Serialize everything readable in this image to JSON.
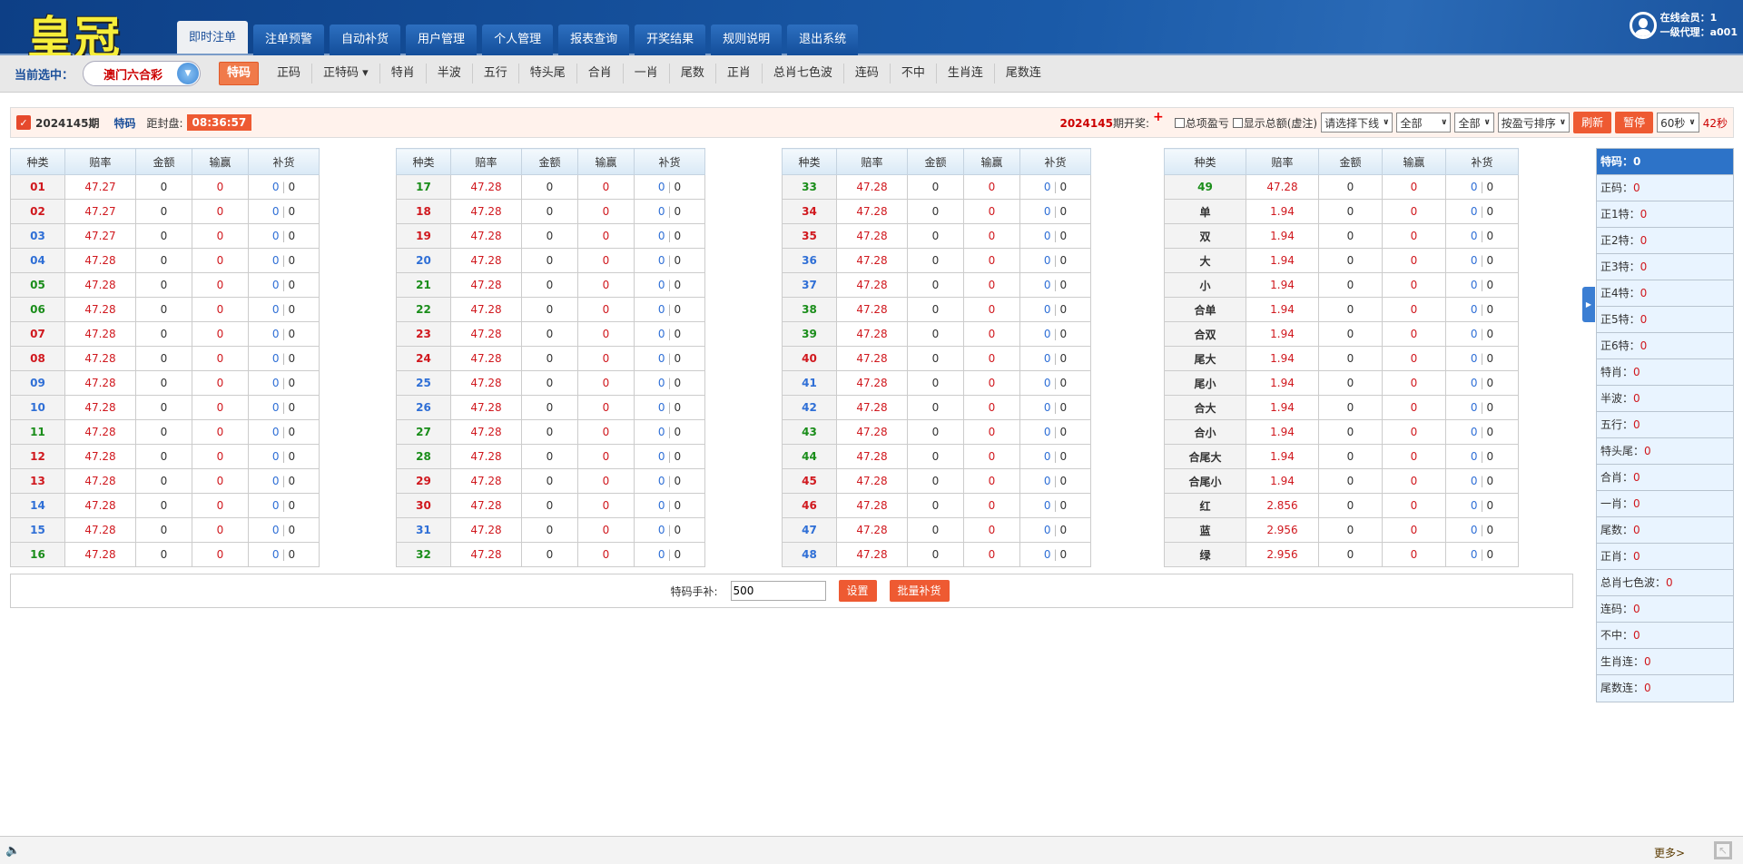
{
  "header": {
    "logo": "皇冠",
    "tabs": [
      "即时注单",
      "注单预警",
      "自动补货",
      "用户管理",
      "个人管理",
      "报表查询",
      "开奖结果",
      "规则说明",
      "退出系统"
    ],
    "online_label": "在线会员：",
    "online_count": "1",
    "agent_label": "一级代理：",
    "agent": "a001"
  },
  "subnav": {
    "current_label": "当前选中：",
    "game": "澳门六合彩",
    "tabs": [
      "特码",
      "正码",
      "正特码 ▾",
      "特肖",
      "半波",
      "五行",
      "特头尾",
      "合肖",
      "一肖",
      "尾数",
      "正肖",
      "总肖七色波",
      "连码",
      "不中",
      "生肖连",
      "尾数连"
    ]
  },
  "infobar": {
    "period": "2024145期",
    "type": "特码",
    "close_label": "距封盘:",
    "countdown": "08:36:57",
    "draw_period": "2024145",
    "draw_label": "期开奖:",
    "chk_total": "总项盈亏",
    "chk_show": "显示总额(虚注)",
    "sel_line": "请选择下线",
    "sel_all1": "全部",
    "sel_all2": "全部",
    "sel_sort": "按盈亏排序",
    "refresh": "刷新",
    "pause": "暂停",
    "sel_interval": "60秒",
    "seconds": "42秒"
  },
  "table": {
    "headers": [
      "种类",
      "赔率",
      "金额",
      "输赢",
      "补货"
    ],
    "columns": [
      [
        [
          "01",
          "47.27",
          "red"
        ],
        [
          "02",
          "47.27",
          "red"
        ],
        [
          "03",
          "47.27",
          "blue"
        ],
        [
          "04",
          "47.28",
          "blue"
        ],
        [
          "05",
          "47.28",
          "green"
        ],
        [
          "06",
          "47.28",
          "green"
        ],
        [
          "07",
          "47.28",
          "red"
        ],
        [
          "08",
          "47.28",
          "red"
        ],
        [
          "09",
          "47.28",
          "blue"
        ],
        [
          "10",
          "47.28",
          "blue"
        ],
        [
          "11",
          "47.28",
          "green"
        ],
        [
          "12",
          "47.28",
          "red"
        ],
        [
          "13",
          "47.28",
          "red"
        ],
        [
          "14",
          "47.28",
          "blue"
        ],
        [
          "15",
          "47.28",
          "blue"
        ],
        [
          "16",
          "47.28",
          "green"
        ]
      ],
      [
        [
          "17",
          "47.28",
          "green"
        ],
        [
          "18",
          "47.28",
          "red"
        ],
        [
          "19",
          "47.28",
          "red"
        ],
        [
          "20",
          "47.28",
          "blue"
        ],
        [
          "21",
          "47.28",
          "green"
        ],
        [
          "22",
          "47.28",
          "green"
        ],
        [
          "23",
          "47.28",
          "red"
        ],
        [
          "24",
          "47.28",
          "red"
        ],
        [
          "25",
          "47.28",
          "blue"
        ],
        [
          "26",
          "47.28",
          "blue"
        ],
        [
          "27",
          "47.28",
          "green"
        ],
        [
          "28",
          "47.28",
          "green"
        ],
        [
          "29",
          "47.28",
          "red"
        ],
        [
          "30",
          "47.28",
          "red"
        ],
        [
          "31",
          "47.28",
          "blue"
        ],
        [
          "32",
          "47.28",
          "green"
        ]
      ],
      [
        [
          "33",
          "47.28",
          "green"
        ],
        [
          "34",
          "47.28",
          "red"
        ],
        [
          "35",
          "47.28",
          "red"
        ],
        [
          "36",
          "47.28",
          "blue"
        ],
        [
          "37",
          "47.28",
          "blue"
        ],
        [
          "38",
          "47.28",
          "green"
        ],
        [
          "39",
          "47.28",
          "green"
        ],
        [
          "40",
          "47.28",
          "red"
        ],
        [
          "41",
          "47.28",
          "blue"
        ],
        [
          "42",
          "47.28",
          "blue"
        ],
        [
          "43",
          "47.28",
          "green"
        ],
        [
          "44",
          "47.28",
          "green"
        ],
        [
          "45",
          "47.28",
          "red"
        ],
        [
          "46",
          "47.28",
          "red"
        ],
        [
          "47",
          "47.28",
          "blue"
        ],
        [
          "48",
          "47.28",
          "blue"
        ]
      ],
      [
        [
          "49",
          "47.28",
          "green"
        ],
        [
          "单",
          "1.94",
          "dark"
        ],
        [
          "双",
          "1.94",
          "dark"
        ],
        [
          "大",
          "1.94",
          "dark"
        ],
        [
          "小",
          "1.94",
          "dark"
        ],
        [
          "合单",
          "1.94",
          "dark"
        ],
        [
          "合双",
          "1.94",
          "dark"
        ],
        [
          "尾大",
          "1.94",
          "dark"
        ],
        [
          "尾小",
          "1.94",
          "dark"
        ],
        [
          "合大",
          "1.94",
          "dark"
        ],
        [
          "合小",
          "1.94",
          "dark"
        ],
        [
          "合尾大",
          "1.94",
          "dark"
        ],
        [
          "合尾小",
          "1.94",
          "dark"
        ],
        [
          "红",
          "2.856",
          "dark"
        ],
        [
          "蓝",
          "2.956",
          "dark"
        ],
        [
          "绿",
          "2.956",
          "dark"
        ]
      ]
    ],
    "amount": "0",
    "winloss": "0",
    "refill_a": "0",
    "refill_b": "0"
  },
  "bulk": {
    "label": "特码手补:",
    "value": "500",
    "set": "设置",
    "batch": "批量补货"
  },
  "side": [
    [
      "特码：",
      "0"
    ],
    [
      "正码：",
      "0"
    ],
    [
      "正1特：",
      "0"
    ],
    [
      "正2特：",
      "0"
    ],
    [
      "正3特：",
      "0"
    ],
    [
      "正4特：",
      "0"
    ],
    [
      "正5特：",
      "0"
    ],
    [
      "正6特：",
      "0"
    ],
    [
      "特肖：",
      "0"
    ],
    [
      "半波：",
      "0"
    ],
    [
      "五行：",
      "0"
    ],
    [
      "特头尾：",
      "0"
    ],
    [
      "合肖：",
      "0"
    ],
    [
      "一肖：",
      "0"
    ],
    [
      "尾数：",
      "0"
    ],
    [
      "正肖：",
      "0"
    ],
    [
      "总肖七色波：",
      "0"
    ],
    [
      "连码：",
      "0"
    ],
    [
      "不中：",
      "0"
    ],
    [
      "生肖连：",
      "0"
    ],
    [
      "尾数连：",
      "0"
    ]
  ],
  "footer": {
    "more": "更多>"
  },
  "colors": {
    "header": "#1a5aa8",
    "accent": "#ee5a32",
    "red": "#d0181e",
    "blue": "#2f6fd6",
    "green": "#1a8d1a",
    "side_header": "#2d73c8"
  }
}
